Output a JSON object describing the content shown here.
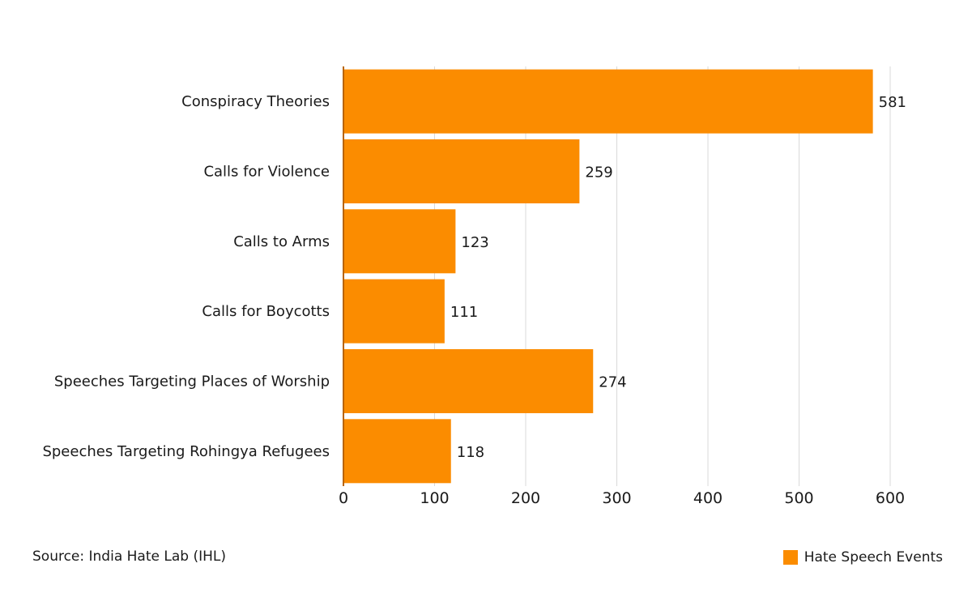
{
  "chart_data": {
    "type": "bar",
    "orientation": "horizontal",
    "categories": [
      "Conspiracy Theories",
      "Calls for Violence",
      "Calls to Arms",
      "Calls for Boycotts",
      "Speeches Targeting Places of Worship",
      "Speeches Targeting Rohingya Refugees"
    ],
    "series": [
      {
        "name": "Hate Speech Events",
        "values": [
          581,
          259,
          123,
          111,
          274,
          118
        ],
        "color": "#FB8C00"
      }
    ],
    "xlim": [
      0,
      600
    ],
    "xticks": [
      0,
      100,
      200,
      300,
      400,
      500,
      600
    ],
    "grid": "vertical",
    "data_labels": true,
    "legend_position": "bottom-right"
  },
  "source": "Source: India Hate Lab (IHL)",
  "legend": {
    "label": "Hate Speech Events"
  },
  "colors": {
    "bar": "#FB8C00",
    "axis": "#B86400",
    "grid": "#D9D9D9"
  }
}
